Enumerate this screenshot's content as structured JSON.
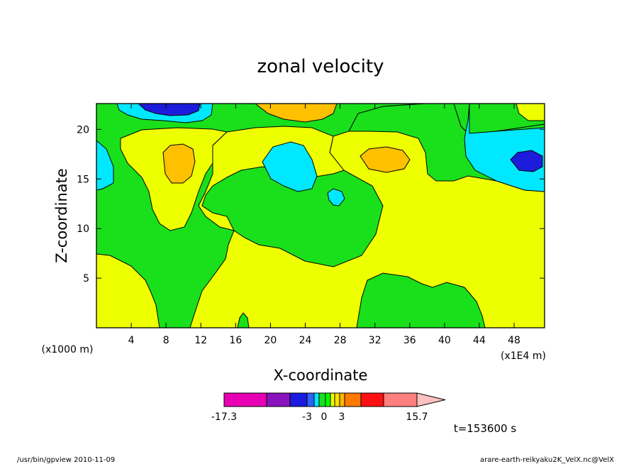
{
  "chart_data": {
    "type": "contour",
    "title": "zonal velocity",
    "xlabel": "X-coordinate",
    "ylabel": "Z-coordinate",
    "x_unit": "(x1E4 m)",
    "y_unit": "(x1000 m)",
    "x_ticks": [
      "4",
      "8",
      "12",
      "16",
      "20",
      "24",
      "28",
      "32",
      "36",
      "40",
      "44",
      "48"
    ],
    "y_ticks": [
      "5",
      "10",
      "15",
      "20"
    ],
    "xlim": [
      0,
      51.5
    ],
    "ylim": [
      0,
      22.6
    ],
    "colorbar": {
      "labels": [
        "-17.3",
        "-3",
        "0",
        "3",
        "15.7"
      ],
      "colors": [
        "#e800b4",
        "#8a12be",
        "#1a1ae0",
        "#2e62ff",
        "#00e6ff",
        "#19e01a",
        "#00ff00",
        "#eeff00",
        "#ffe000",
        "#ffb800",
        "#ff7800",
        "#ff1010",
        "#ff7f7f",
        "#ffc0c0"
      ]
    },
    "fill_colors": {
      "blue": "#1c1cdc",
      "cyan": "#00e8ff",
      "green": "#19e01a",
      "yellow": "#eeff00",
      "orange": "#ffc000"
    },
    "time_label": "t=153600 s"
  },
  "footer": {
    "left": "/usr/bin/gpview   2010-11-09",
    "right": "arare-earth-reikyaku2K_VelX.nc@VelX"
  }
}
